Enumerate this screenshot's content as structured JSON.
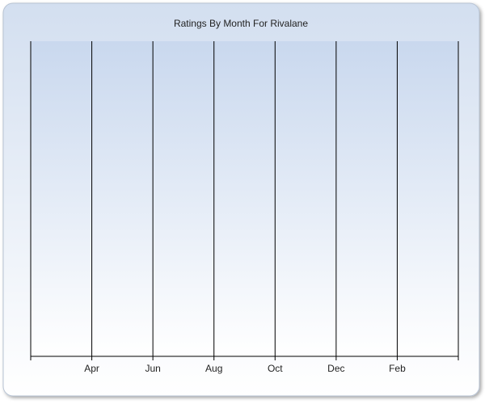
{
  "chart_data": {
    "type": "line",
    "title": "Ratings By Month For Rivalane",
    "categories": [
      null,
      "Apr",
      "Jun",
      "Aug",
      "Oct",
      "Dec",
      "Feb",
      null
    ],
    "grid": true
  }
}
